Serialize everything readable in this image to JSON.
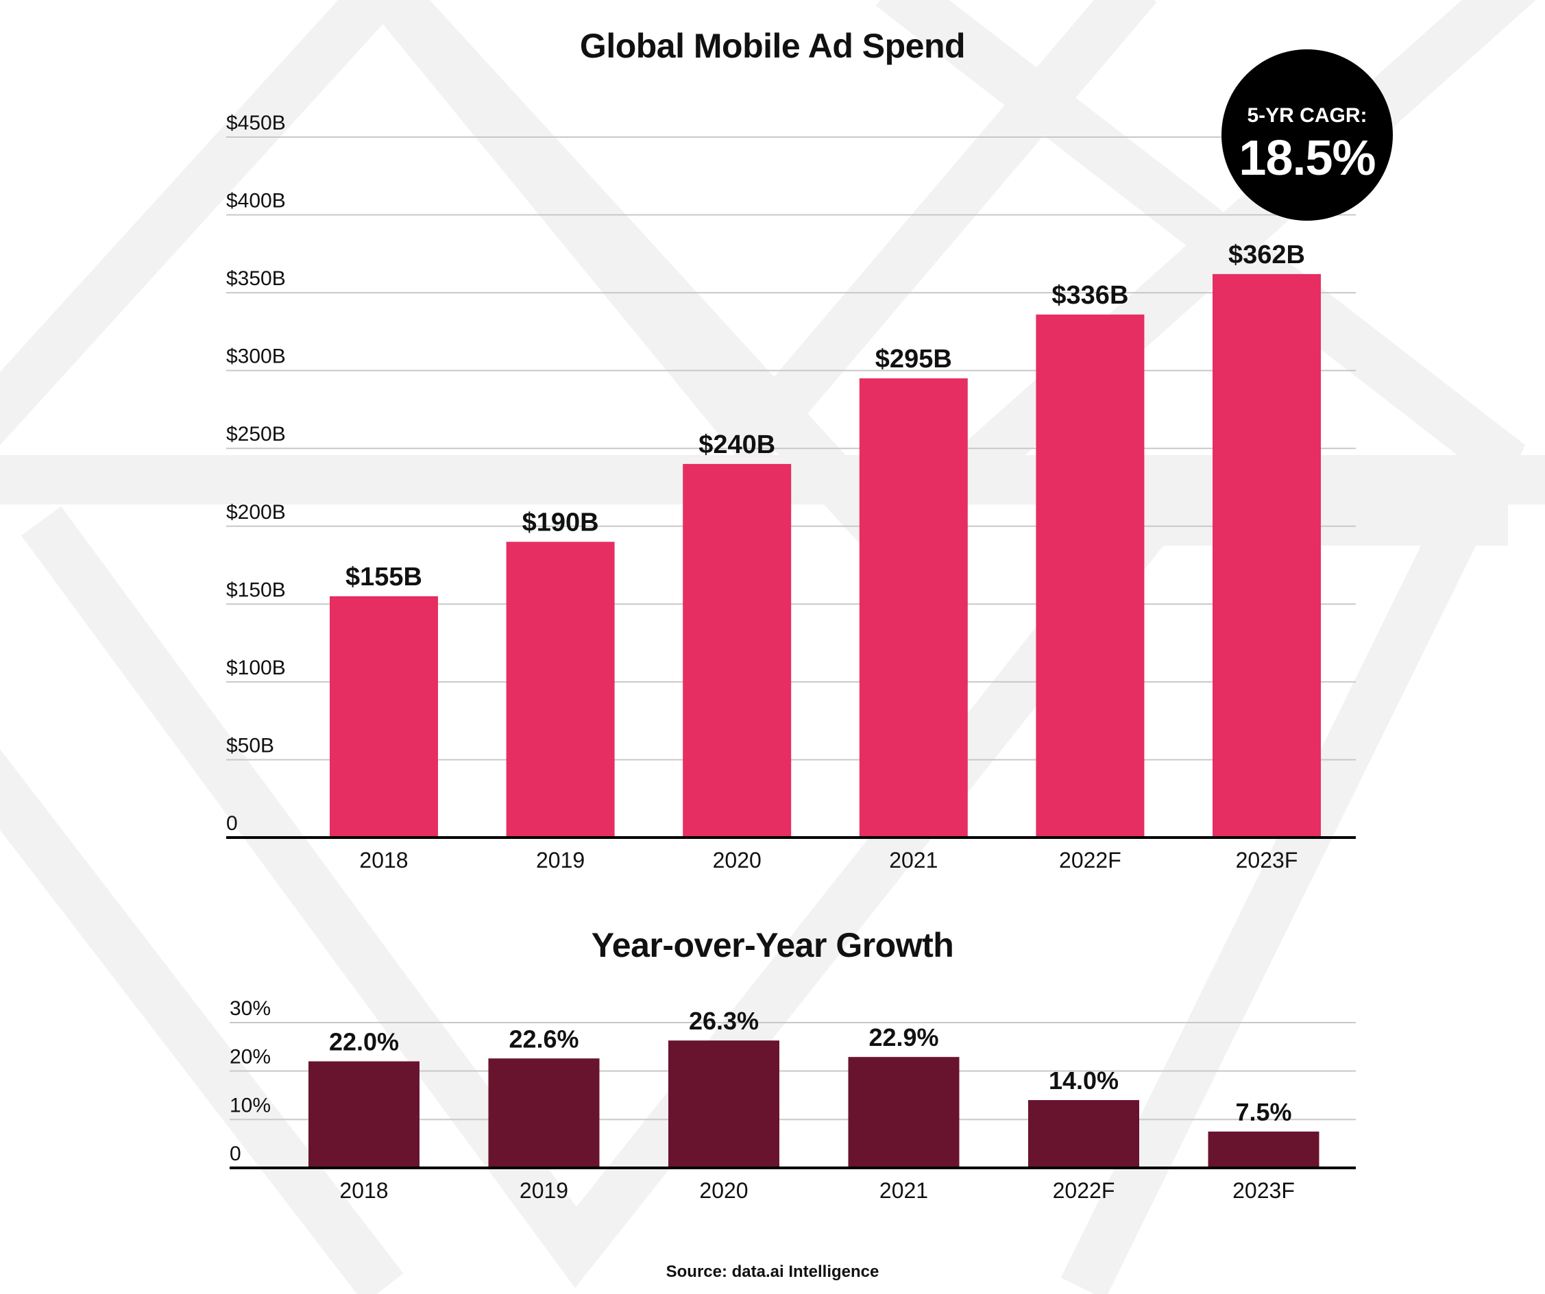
{
  "colors": {
    "main_bar": "#e62e63",
    "yoy_bar": "#69142e",
    "grid": "#c8c8c8",
    "axis": "#000000",
    "watermark": "#f1f1f1"
  },
  "cagr": {
    "label": "5-YR CAGR:",
    "value": "18.5%"
  },
  "source": "Source: data.ai Intelligence",
  "chart_data": [
    {
      "type": "bar",
      "title": "Global Mobile Ad Spend",
      "categories": [
        "2018",
        "2019",
        "2020",
        "2021",
        "2022F",
        "2023F"
      ],
      "values": [
        155,
        190,
        240,
        295,
        336,
        362
      ],
      "data_labels": [
        "$155B",
        "$190B",
        "$240B",
        "$295B",
        "$336B",
        "$362B"
      ],
      "ylim": [
        0,
        450
      ],
      "yticks": [
        0,
        50,
        100,
        150,
        200,
        250,
        300,
        350,
        400,
        450
      ],
      "ytick_labels": [
        "0",
        "$50B",
        "$100B",
        "$150B",
        "$200B",
        "$250B",
        "$300B",
        "$350B",
        "$400B",
        "$450B"
      ],
      "xlabel": "",
      "ylabel": "",
      "grid": true
    },
    {
      "type": "bar",
      "title": "Year-over-Year Growth",
      "categories": [
        "2018",
        "2019",
        "2020",
        "2021",
        "2022F",
        "2023F"
      ],
      "values": [
        22.0,
        22.6,
        26.3,
        22.9,
        14.0,
        7.5
      ],
      "data_labels": [
        "22.0%",
        "22.6%",
        "26.3%",
        "22.9%",
        "14.0%",
        "7.5%"
      ],
      "ylim": [
        0,
        30
      ],
      "yticks": [
        0,
        10,
        20,
        30
      ],
      "ytick_labels": [
        "0",
        "10%",
        "20%",
        "30%"
      ],
      "xlabel": "",
      "ylabel": "",
      "grid": true
    }
  ]
}
